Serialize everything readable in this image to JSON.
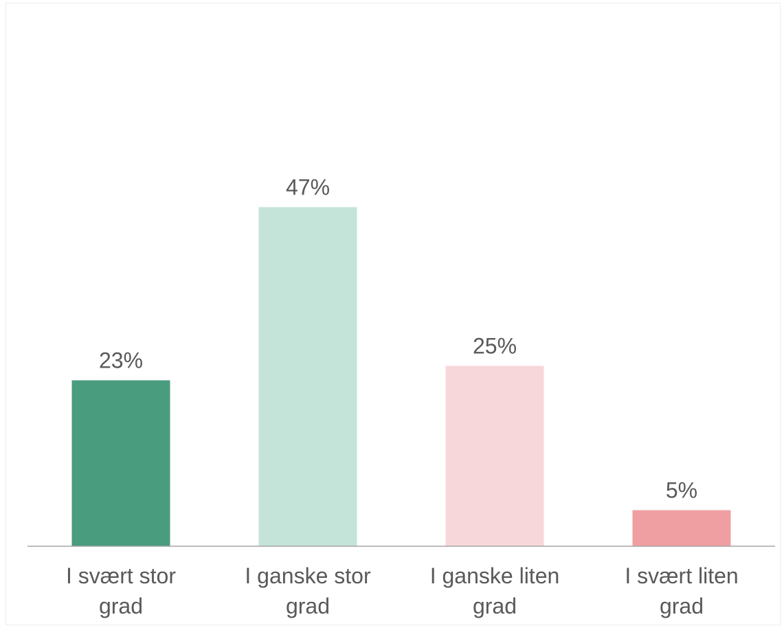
{
  "chart_data": {
    "type": "bar",
    "categories": [
      "I svært stor grad",
      "I ganske stor grad",
      "I ganske liten grad",
      "I svært liten grad"
    ],
    "category_lines": [
      [
        "I svært stor",
        "grad"
      ],
      [
        "I ganske stor",
        "grad"
      ],
      [
        "I ganske liten",
        "grad"
      ],
      [
        "I svært liten",
        "grad"
      ]
    ],
    "values": [
      23,
      47,
      25,
      5
    ],
    "value_labels": [
      "23%",
      "47%",
      "25%",
      "5%"
    ],
    "colors": [
      "#4a9c7e",
      "#c4e3d9",
      "#f7d7d9",
      "#ef9fa1"
    ],
    "title": "",
    "xlabel": "",
    "ylabel": "",
    "ylim": [
      0,
      50
    ],
    "grid": false,
    "axis_color": "#a6a6a6"
  }
}
